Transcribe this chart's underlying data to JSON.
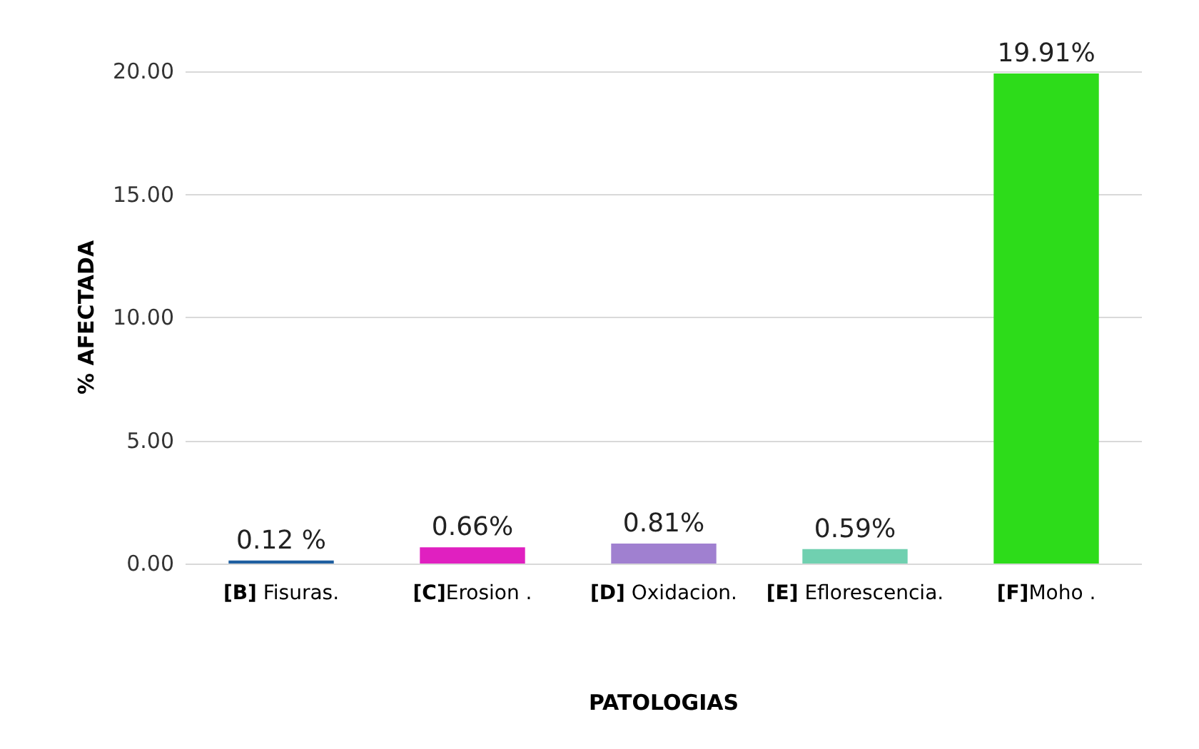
{
  "chart_data": {
    "type": "bar",
    "xlabel": "PATOLOGIAS",
    "ylabel": "% AFECTADA",
    "categories": [
      "[B] Fisuras.",
      "[C]Erosion .",
      "[D] Oxidacion.",
      "[E] Eflorescencia.",
      "[F]Moho ."
    ],
    "values": [
      0.12,
      0.66,
      0.81,
      0.59,
      19.91
    ],
    "colors": [
      "#1f5fa0",
      "#e020c0",
      "#a080d0",
      "#70d0b0",
      "#2ddc1a"
    ],
    "value_labels": [
      "0.12 %",
      "0.66%",
      "0.81%",
      "0.59%",
      "19.91%"
    ],
    "ylim": [
      0,
      20
    ],
    "yticks": [
      {
        "value": 0,
        "label": "0.00"
      },
      {
        "value": 5,
        "label": "5.00"
      },
      {
        "value": 10,
        "label": "10.00"
      },
      {
        "value": 15,
        "label": "15.00"
      },
      {
        "value": 20,
        "label": "20.00"
      }
    ],
    "grid": "y"
  }
}
